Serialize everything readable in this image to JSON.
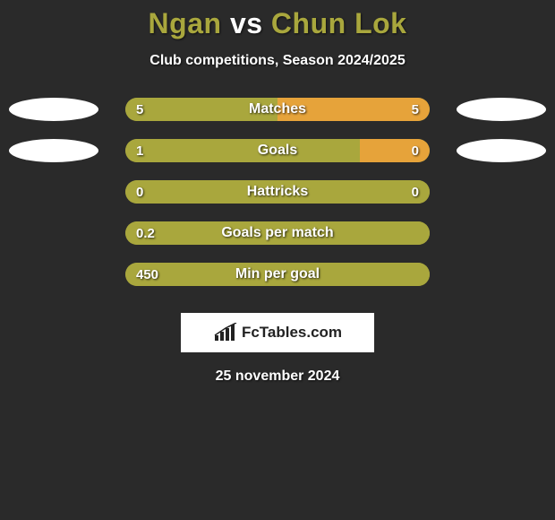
{
  "title": {
    "player1": "Ngan",
    "vs": "vs",
    "player2": "Chun Lok",
    "player1_color": "#a9a73d",
    "vs_color": "#ffffff",
    "player2_color": "#a9a73d"
  },
  "subtitle": "Club competitions, Season 2024/2025",
  "date": "25 november 2024",
  "colors": {
    "left_bar": "#a9a73d",
    "right_bar": "#e6a33a",
    "track_bg": "#a9a73d",
    "badge": "#ffffff",
    "background": "#2a2a2a",
    "text": "#ffffff"
  },
  "stats": [
    {
      "label": "Matches",
      "left_value": "5",
      "right_value": "5",
      "left_num": 5,
      "right_num": 5,
      "left_pct": 50,
      "right_pct": 50,
      "show_left_badge": true,
      "show_right_badge": true
    },
    {
      "label": "Goals",
      "left_value": "1",
      "right_value": "0",
      "left_num": 1,
      "right_num": 0,
      "left_pct": 77,
      "right_pct": 23,
      "show_left_badge": true,
      "show_right_badge": true
    },
    {
      "label": "Hattricks",
      "left_value": "0",
      "right_value": "0",
      "left_num": 0,
      "right_num": 0,
      "left_pct": 100,
      "right_pct": 0,
      "show_left_badge": false,
      "show_right_badge": false
    },
    {
      "label": "Goals per match",
      "left_value": "0.2",
      "right_value": "",
      "left_num": 0.2,
      "right_num": 0,
      "left_pct": 100,
      "right_pct": 0,
      "show_left_badge": false,
      "show_right_badge": false
    },
    {
      "label": "Min per goal",
      "left_value": "450",
      "right_value": "",
      "left_num": 450,
      "right_num": 0,
      "left_pct": 100,
      "right_pct": 0,
      "show_left_badge": false,
      "show_right_badge": false
    }
  ],
  "logo": {
    "text": "FcTables.com",
    "icon_name": "bar-chart-icon"
  }
}
